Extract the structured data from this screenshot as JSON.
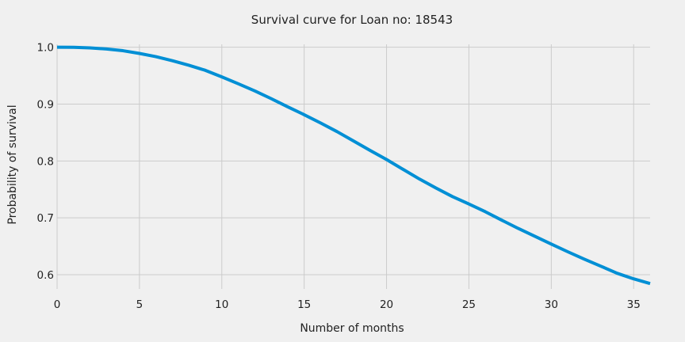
{
  "chart_data": {
    "type": "line",
    "title": "Survival curve for Loan no: 18543",
    "xlabel": "Number of months",
    "ylabel": "Probability of survival",
    "xlim": [
      0,
      36
    ],
    "ylim": [
      0.575,
      1.005
    ],
    "xticks": [
      0,
      5,
      10,
      15,
      20,
      25,
      30,
      35
    ],
    "yticks": [
      0.6,
      0.7,
      0.8,
      0.9,
      1.0
    ],
    "ytick_labels": [
      "0.6",
      "0.7",
      "0.8",
      "0.9",
      "1.0"
    ],
    "grid": true,
    "colors": {
      "background": "#f0f0f0",
      "grid": "#cbcbcb",
      "line": "#008fd5",
      "text": "#222222"
    },
    "series": [
      {
        "x": [
          0,
          1,
          2,
          3,
          4,
          5,
          6,
          7,
          8,
          9,
          10,
          11,
          12,
          13,
          14,
          15,
          16,
          17,
          18,
          19,
          20,
          21,
          22,
          23,
          24,
          25,
          26,
          27,
          28,
          29,
          30,
          31,
          32,
          33,
          34,
          35,
          36
        ],
        "values": [
          1.0,
          0.9998,
          0.9988,
          0.9968,
          0.9938,
          0.989,
          0.9833,
          0.9762,
          0.9682,
          0.9593,
          0.9478,
          0.9357,
          0.9232,
          0.9095,
          0.8952,
          0.8813,
          0.8667,
          0.8515,
          0.835,
          0.8185,
          0.8025,
          0.7853,
          0.7682,
          0.7525,
          0.7374,
          0.7244,
          0.7107,
          0.6958,
          0.6813,
          0.6677,
          0.6539,
          0.6404,
          0.6275,
          0.6151,
          0.6026,
          0.5928,
          0.5845
        ]
      }
    ]
  }
}
